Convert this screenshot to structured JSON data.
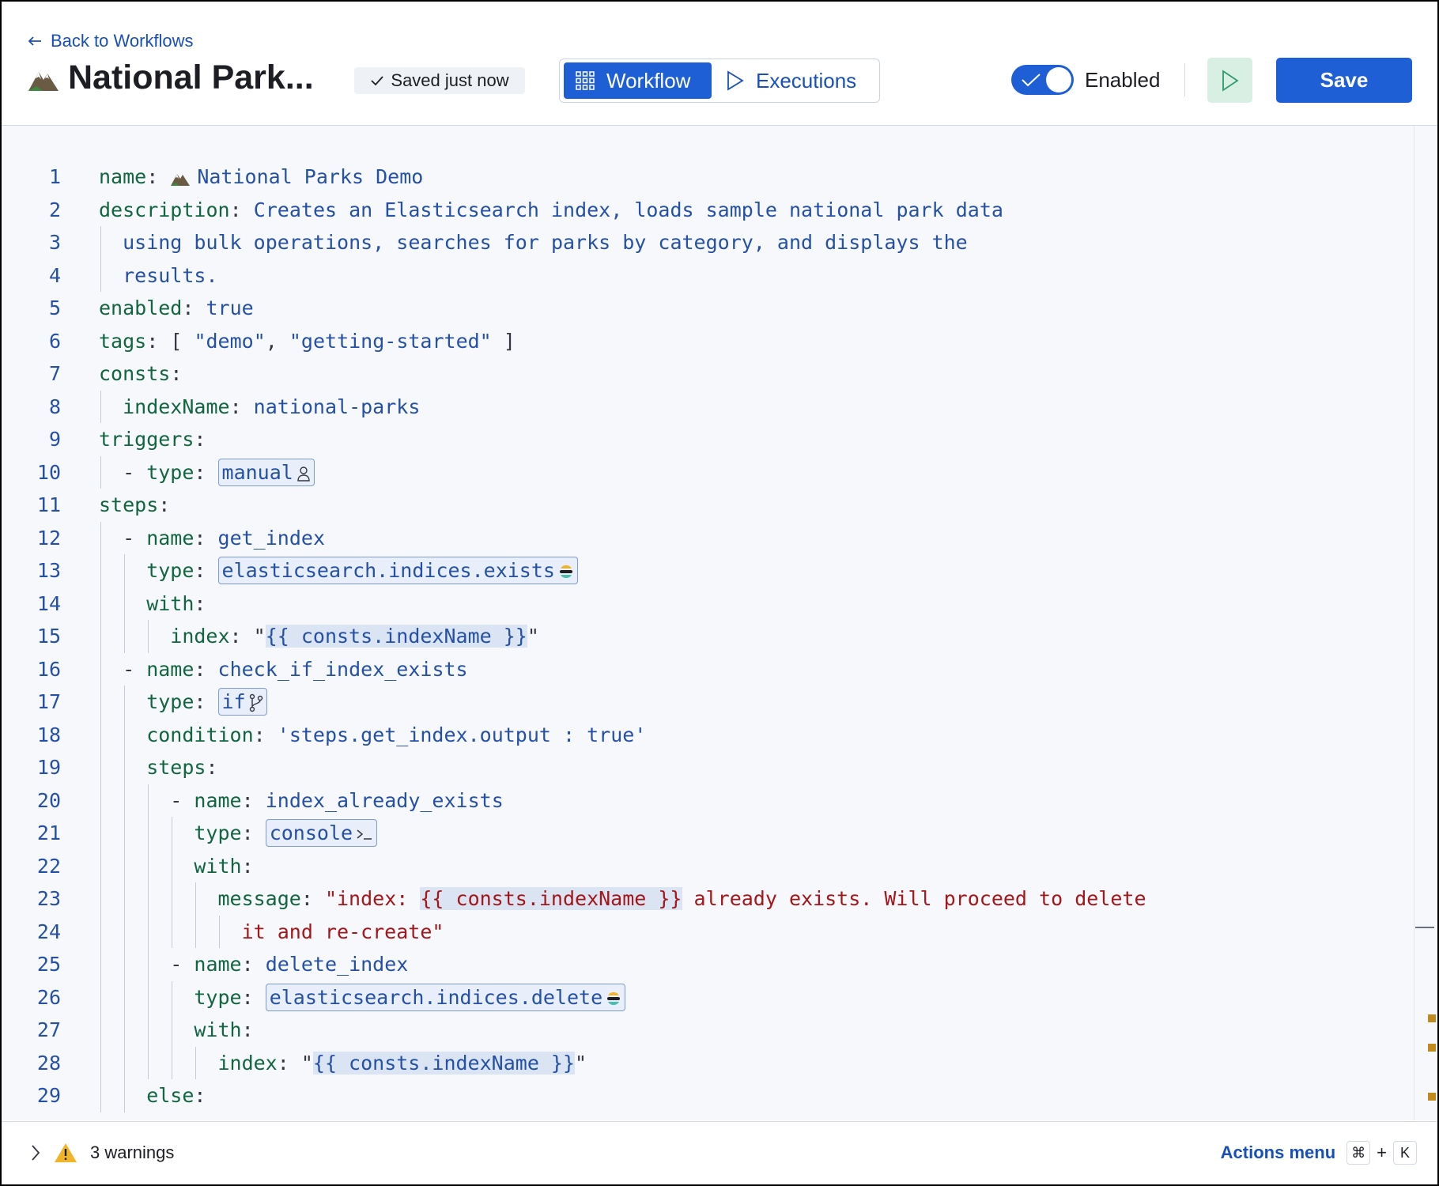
{
  "header": {
    "back_link": "Back to Workflows",
    "title": "National Park...",
    "save_status": "Saved just now",
    "tabs": [
      "Workflow",
      "Executions"
    ],
    "toggle_label": "Enabled",
    "save_button": "Save"
  },
  "editor": {
    "lines": [
      {
        "number": 1,
        "tokens": [
          "name",
          ": ",
          "National Parks Demo"
        ]
      },
      {
        "number": 2,
        "tokens": [
          "description",
          ": ",
          "Creates an Elasticsearch index, loads sample national park data"
        ]
      },
      {
        "number": 3,
        "tokens": [
          "using bulk operations, searches for parks by category, and displays the"
        ]
      },
      {
        "number": 4,
        "tokens": [
          "results."
        ]
      },
      {
        "number": 5,
        "tokens": [
          "enabled",
          ": ",
          "true"
        ]
      },
      {
        "number": 6,
        "tokens": [
          "tags",
          ": [ ",
          "\"demo\"",
          ", ",
          "\"getting-started\"",
          " ]"
        ]
      },
      {
        "number": 7,
        "tokens": [
          "consts",
          ":"
        ]
      },
      {
        "number": 8,
        "tokens": [
          "indexName",
          ": ",
          "national-parks"
        ]
      },
      {
        "number": 9,
        "tokens": [
          "triggers",
          ":"
        ]
      },
      {
        "number": 10,
        "tokens": [
          "- ",
          "type",
          ": ",
          "manual"
        ]
      },
      {
        "number": 11,
        "tokens": [
          "steps",
          ":"
        ]
      },
      {
        "number": 12,
        "tokens": [
          "- ",
          "name",
          ": ",
          "get_index"
        ]
      },
      {
        "number": 13,
        "tokens": [
          "type",
          ": ",
          "elasticsearch.indices.exists"
        ]
      },
      {
        "number": 14,
        "tokens": [
          "with",
          ":"
        ]
      },
      {
        "number": 15,
        "tokens": [
          "index",
          ": \"",
          "{{ consts.indexName }}",
          "\""
        ]
      },
      {
        "number": 16,
        "tokens": [
          "- ",
          "name",
          ": ",
          "check_if_index_exists"
        ]
      },
      {
        "number": 17,
        "tokens": [
          "type",
          ": ",
          "if"
        ]
      },
      {
        "number": 18,
        "tokens": [
          "condition",
          ": ",
          "'steps.get_index.output : true'"
        ]
      },
      {
        "number": 19,
        "tokens": [
          "steps",
          ":"
        ]
      },
      {
        "number": 20,
        "tokens": [
          "- ",
          "name",
          ": ",
          "index_already_exists"
        ]
      },
      {
        "number": 21,
        "tokens": [
          "type",
          ": ",
          "console"
        ]
      },
      {
        "number": 22,
        "tokens": [
          "with",
          ":"
        ]
      },
      {
        "number": 23,
        "tokens": [
          "message",
          ": ",
          "\"index: ",
          "{{ consts.indexName }}",
          " already exists. Will proceed to delete"
        ]
      },
      {
        "number": 24,
        "tokens": [
          "it and re-create\""
        ]
      },
      {
        "number": 25,
        "tokens": [
          "- ",
          "name",
          ": ",
          "delete_index"
        ]
      },
      {
        "number": 26,
        "tokens": [
          "type",
          ": ",
          "elasticsearch.indices.delete"
        ]
      },
      {
        "number": 27,
        "tokens": [
          "with",
          ":"
        ]
      },
      {
        "number": 28,
        "tokens": [
          "index",
          ": \"",
          "{{ consts.indexName }}",
          "\""
        ]
      },
      {
        "number": 29,
        "tokens": [
          "else",
          ":"
        ]
      }
    ]
  },
  "footer": {
    "warnings": "3 warnings",
    "actions_menu": "Actions menu",
    "shortcut": [
      "⌘",
      "+",
      "K"
    ]
  }
}
